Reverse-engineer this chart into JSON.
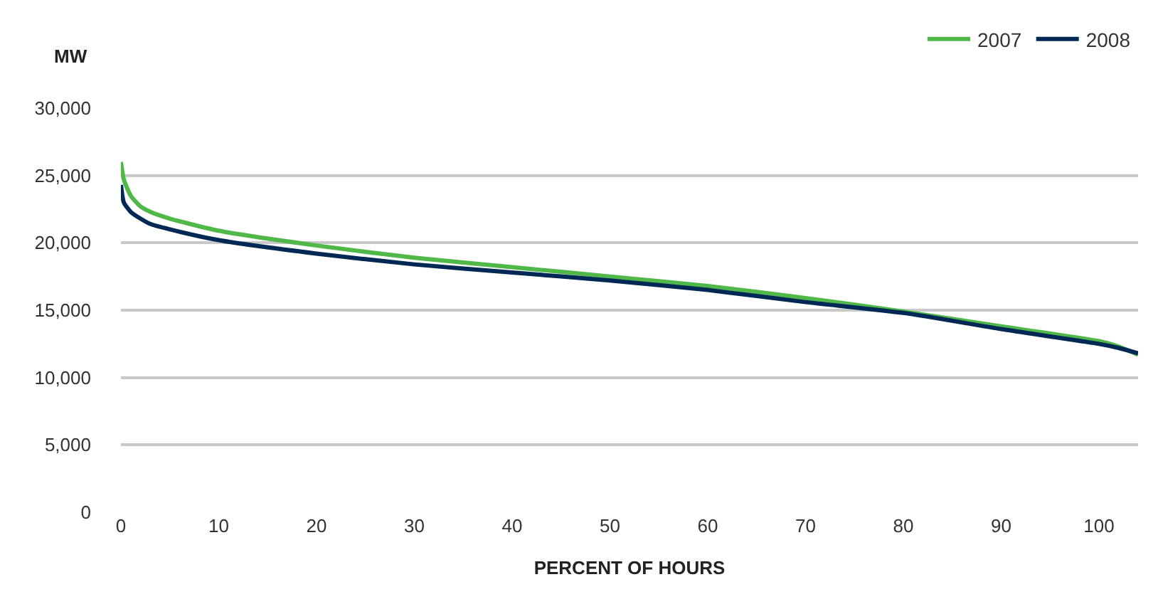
{
  "chart_data": {
    "type": "line",
    "xlabel": "PERCENT OF HOURS",
    "ylabel": "MW",
    "series": [
      {
        "name": "2007",
        "color": "#50b848",
        "x": [
          0,
          0.3,
          1,
          2,
          3,
          5,
          10,
          20,
          30,
          40,
          50,
          60,
          70,
          80,
          90,
          100,
          102,
          104
        ],
        "values": [
          26000,
          24700,
          23500,
          22700,
          22300,
          21800,
          20900,
          19800,
          18900,
          18200,
          17500,
          16800,
          15900,
          14900,
          13800,
          12700,
          12300,
          11700
        ]
      },
      {
        "name": "2008",
        "color": "#002855",
        "x": [
          0,
          0.3,
          1,
          2,
          3,
          5,
          10,
          20,
          30,
          40,
          50,
          60,
          70,
          80,
          90,
          100,
          102,
          104
        ],
        "values": [
          24300,
          23000,
          22300,
          21800,
          21400,
          21000,
          20200,
          19200,
          18400,
          17800,
          17200,
          16500,
          15600,
          14800,
          13600,
          12500,
          12200,
          11800
        ]
      }
    ],
    "xlim": [
      0,
      104
    ],
    "xticks": [
      0,
      10,
      20,
      30,
      40,
      50,
      60,
      70,
      80,
      90,
      100
    ],
    "ylim": [
      0,
      30000
    ],
    "yticks": [
      {
        "value": 0,
        "label": "0"
      },
      {
        "value": 5000,
        "label": "5,000"
      },
      {
        "value": 10000,
        "label": "10,000"
      },
      {
        "value": 15000,
        "label": "15,000"
      },
      {
        "value": 20000,
        "label": "20,000"
      },
      {
        "value": 25000,
        "label": "25,000"
      },
      {
        "value": 30000,
        "label": "30,000"
      }
    ],
    "grid": "y",
    "legend": "top right",
    "marker": "none",
    "line_style": "solid"
  }
}
